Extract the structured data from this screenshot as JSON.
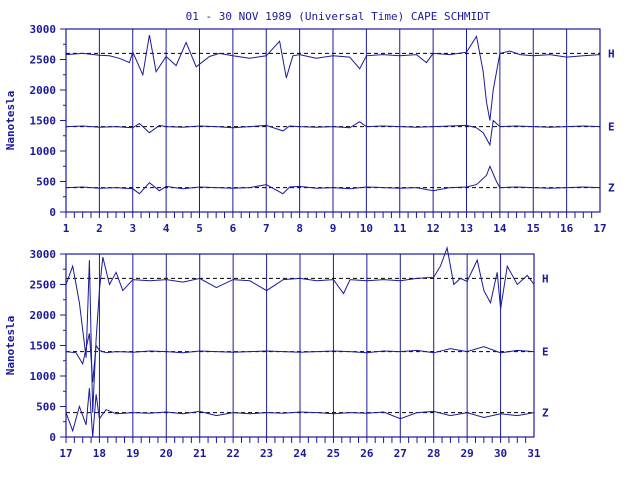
{
  "title": "01 - 30 NOV 1989 (Universal Time) CAPE SCHMIDT",
  "colors": {
    "trace": "#1a1a9c",
    "baseline": "#000000",
    "background": "#ffffff"
  },
  "chart_data": [
    {
      "type": "line",
      "ylabel": "Nanotesla",
      "ylim": [
        0,
        3000
      ],
      "yticks": [
        0,
        500,
        1000,
        1500,
        2000,
        2500,
        3000
      ],
      "xlim": [
        1,
        17
      ],
      "xticks": [
        "1",
        "2",
        "3",
        "4",
        "5",
        "6",
        "7",
        "8",
        "9",
        "10",
        "11",
        "12",
        "13",
        "14",
        "15",
        "16",
        "17"
      ],
      "grid": "vertical lines at each day",
      "series": [
        {
          "name": "H",
          "baseline": 2600,
          "x": [
            1,
            1.5,
            2,
            2.3,
            2.6,
            2.9,
            3.0,
            3.3,
            3.5,
            3.7,
            4.0,
            4.3,
            4.6,
            4.9,
            5.3,
            5.6,
            6.0,
            6.5,
            7.0,
            7.4,
            7.6,
            7.8,
            8.0,
            8.5,
            9.0,
            9.5,
            9.8,
            10.0,
            10.5,
            11.0,
            11.5,
            11.8,
            12.0,
            12.5,
            13.0,
            13.3,
            13.5,
            13.6,
            13.7,
            13.8,
            14.0,
            14.3,
            14.6,
            15.0,
            15.5,
            16.0,
            16.5,
            17.0
          ],
          "y": [
            2580,
            2600,
            2570,
            2560,
            2520,
            2450,
            2620,
            2250,
            2900,
            2300,
            2550,
            2400,
            2780,
            2380,
            2550,
            2600,
            2560,
            2520,
            2560,
            2800,
            2200,
            2560,
            2580,
            2520,
            2560,
            2540,
            2350,
            2560,
            2580,
            2560,
            2580,
            2450,
            2600,
            2580,
            2620,
            2880,
            2300,
            1800,
            1500,
            2000,
            2600,
            2640,
            2580,
            2560,
            2580,
            2540,
            2560,
            2580
          ]
        },
        {
          "name": "E",
          "baseline": 1400,
          "x": [
            1,
            1.5,
            2,
            2.5,
            3.0,
            3.2,
            3.5,
            3.8,
            4.0,
            4.5,
            5.0,
            5.5,
            6.0,
            6.5,
            7.0,
            7.5,
            7.7,
            8.0,
            8.5,
            9.0,
            9.5,
            9.8,
            10.0,
            10.5,
            11.0,
            11.5,
            12.0,
            12.5,
            13.0,
            13.3,
            13.5,
            13.7,
            13.8,
            14.0,
            14.5,
            15.0,
            15.5,
            16.0,
            16.5,
            17.0
          ],
          "y": [
            1400,
            1410,
            1390,
            1400,
            1380,
            1450,
            1300,
            1420,
            1400,
            1390,
            1410,
            1400,
            1380,
            1400,
            1420,
            1330,
            1410,
            1400,
            1390,
            1400,
            1380,
            1480,
            1400,
            1410,
            1400,
            1390,
            1400,
            1410,
            1420,
            1380,
            1300,
            1100,
            1500,
            1400,
            1410,
            1400,
            1390,
            1400,
            1410,
            1400
          ]
        },
        {
          "name": "Z",
          "baseline": 400,
          "x": [
            1,
            1.5,
            2,
            2.5,
            3.0,
            3.2,
            3.5,
            3.8,
            4.0,
            4.5,
            5.0,
            5.5,
            6.0,
            6.5,
            7.0,
            7.5,
            7.7,
            8.0,
            8.5,
            9.0,
            9.5,
            10.0,
            10.5,
            11.0,
            11.5,
            12.0,
            12.5,
            13.0,
            13.3,
            13.6,
            13.7,
            13.9,
            14.0,
            14.5,
            15.0,
            15.5,
            16.0,
            16.5,
            17.0
          ],
          "y": [
            400,
            410,
            390,
            400,
            380,
            300,
            480,
            350,
            420,
            380,
            410,
            400,
            390,
            400,
            450,
            300,
            410,
            420,
            390,
            400,
            380,
            410,
            400,
            390,
            400,
            350,
            400,
            410,
            450,
            600,
            750,
            500,
            400,
            410,
            400,
            390,
            400,
            410,
            400
          ]
        }
      ]
    },
    {
      "type": "line",
      "ylabel": "Nanotesla",
      "ylim": [
        0,
        3000
      ],
      "yticks": [
        0,
        500,
        1000,
        1500,
        2000,
        2500,
        3000
      ],
      "xlim": [
        17,
        31
      ],
      "xticks": [
        "17",
        "18",
        "19",
        "20",
        "21",
        "22",
        "23",
        "24",
        "25",
        "26",
        "27",
        "28",
        "29",
        "30",
        "31"
      ],
      "grid": "vertical lines at each day",
      "series": [
        {
          "name": "H",
          "baseline": 2600,
          "x": [
            17.0,
            17.2,
            17.4,
            17.6,
            17.7,
            17.8,
            17.9,
            18.0,
            18.1,
            18.3,
            18.5,
            18.7,
            19.0,
            19.5,
            20.0,
            20.5,
            21.0,
            21.5,
            22.0,
            22.5,
            23.0,
            23.5,
            24.0,
            24.5,
            25.0,
            25.3,
            25.5,
            26.0,
            26.5,
            27.0,
            27.5,
            28.0,
            28.2,
            28.4,
            28.6,
            28.8,
            29.0,
            29.3,
            29.5,
            29.7,
            29.9,
            30.0,
            30.2,
            30.5,
            30.8,
            31.0
          ],
          "y": [
            2500,
            2800,
            2200,
            1300,
            2900,
            400,
            1600,
            2400,
            2950,
            2500,
            2700,
            2400,
            2580,
            2560,
            2580,
            2540,
            2600,
            2450,
            2580,
            2560,
            2400,
            2580,
            2600,
            2560,
            2580,
            2350,
            2580,
            2560,
            2580,
            2560,
            2600,
            2620,
            2800,
            3100,
            2500,
            2600,
            2550,
            2900,
            2400,
            2200,
            2700,
            2100,
            2800,
            2500,
            2650,
            2500
          ]
        },
        {
          "name": "E",
          "baseline": 1400,
          "x": [
            17.0,
            17.3,
            17.5,
            17.7,
            17.8,
            17.9,
            18.0,
            18.2,
            18.5,
            19.0,
            19.5,
            20.0,
            20.5,
            21.0,
            21.5,
            22.0,
            22.5,
            23.0,
            23.5,
            24.0,
            24.5,
            25.0,
            25.5,
            26.0,
            26.5,
            27.0,
            27.5,
            28.0,
            28.5,
            29.0,
            29.5,
            30.0,
            30.5,
            31.0
          ],
          "y": [
            1400,
            1380,
            1200,
            1700,
            900,
            1500,
            1420,
            1380,
            1400,
            1390,
            1410,
            1400,
            1380,
            1410,
            1400,
            1390,
            1400,
            1410,
            1400,
            1390,
            1400,
            1410,
            1400,
            1380,
            1410,
            1400,
            1420,
            1380,
            1450,
            1400,
            1480,
            1380,
            1420,
            1400
          ]
        },
        {
          "name": "Z",
          "baseline": 400,
          "x": [
            17.0,
            17.2,
            17.4,
            17.6,
            17.7,
            17.8,
            17.9,
            18.0,
            18.2,
            18.5,
            19.0,
            19.5,
            20.0,
            20.5,
            21.0,
            21.5,
            22.0,
            22.5,
            23.0,
            23.5,
            24.0,
            24.5,
            25.0,
            25.5,
            26.0,
            26.5,
            27.0,
            27.5,
            28.0,
            28.5,
            29.0,
            29.5,
            30.0,
            30.5,
            31.0
          ],
          "y": [
            400,
            100,
            500,
            200,
            800,
            0,
            700,
            300,
            450,
            380,
            400,
            390,
            410,
            380,
            420,
            350,
            400,
            380,
            400,
            390,
            410,
            400,
            380,
            400,
            390,
            410,
            300,
            400,
            420,
            350,
            400,
            320,
            380,
            350,
            400
          ]
        }
      ]
    }
  ]
}
